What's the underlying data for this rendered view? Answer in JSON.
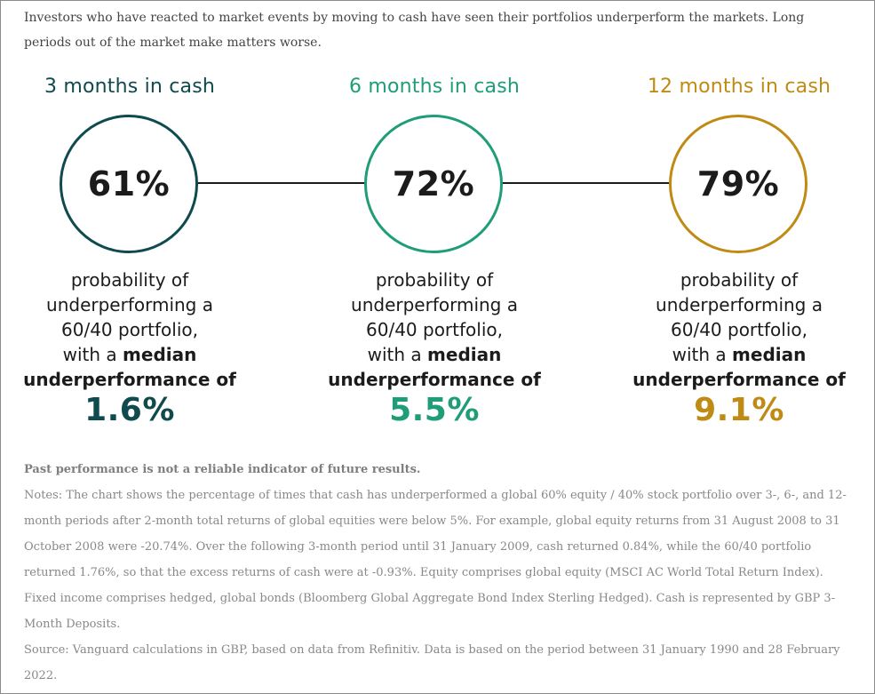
{
  "intro": "Investors who have reacted to market events by moving to cash have seen their portfolios underperform the markets. Long periods out of the market make matters worse.",
  "columns": [
    {
      "title": "3 months in cash",
      "percent": "61%",
      "desc_line1": "probability of",
      "desc_line2": "underperforming a",
      "desc_line3": "60/40 portfolio,",
      "desc_line4_prefix": "with a",
      "desc_line4_bold": "median",
      "desc_line5": "underperformance of",
      "median_value": "1.6%",
      "color": "#0f4a4e"
    },
    {
      "title": "6 months in cash",
      "percent": "72%",
      "desc_line1": "probability of",
      "desc_line2": "underperforming a",
      "desc_line3": "60/40 portfolio,",
      "desc_line4_prefix": "with a",
      "desc_line4_bold": "median",
      "desc_line5": "underperformance of",
      "median_value": "5.5%",
      "color": "#1f9d79"
    },
    {
      "title": "12 months in cash",
      "percent": "79%",
      "desc_line1": "probability of",
      "desc_line2": "underperforming a",
      "desc_line3": "60/40 portfolio,",
      "desc_line4_prefix": "with a",
      "desc_line4_bold": "median",
      "desc_line5": "underperformance of",
      "median_value": "9.1%",
      "color": "#c08b14"
    }
  ],
  "footer": {
    "disclaimer": "Past performance is not a reliable indicator of future results.",
    "notes": "Notes: The chart shows the percentage of times that cash has underperformed a global 60% equity / 40% stock portfolio over 3-, 6-, and 12-month periods after 2-month total returns of global equities were below 5%. For example, global equity returns from 31 August 2008 to 31 October 2008 were -20.74%. Over the following 3-month period until 31 January 2009, cash returned 0.84%, while the 60/40 portfolio returned 1.76%, so that the excess returns of cash were at -0.93%. Equity comprises global equity (MSCI AC World Total Return Index). Fixed income comprises hedged, global bonds (Bloomberg Global Aggregate Bond Index Sterling Hedged). Cash is represented by GBP 3-Month Deposits.",
    "source": "Source: Vanguard calculations in GBP, based on data from Refinitiv. Data is based on the period between 31 January 1990 and 28 February 2022."
  }
}
